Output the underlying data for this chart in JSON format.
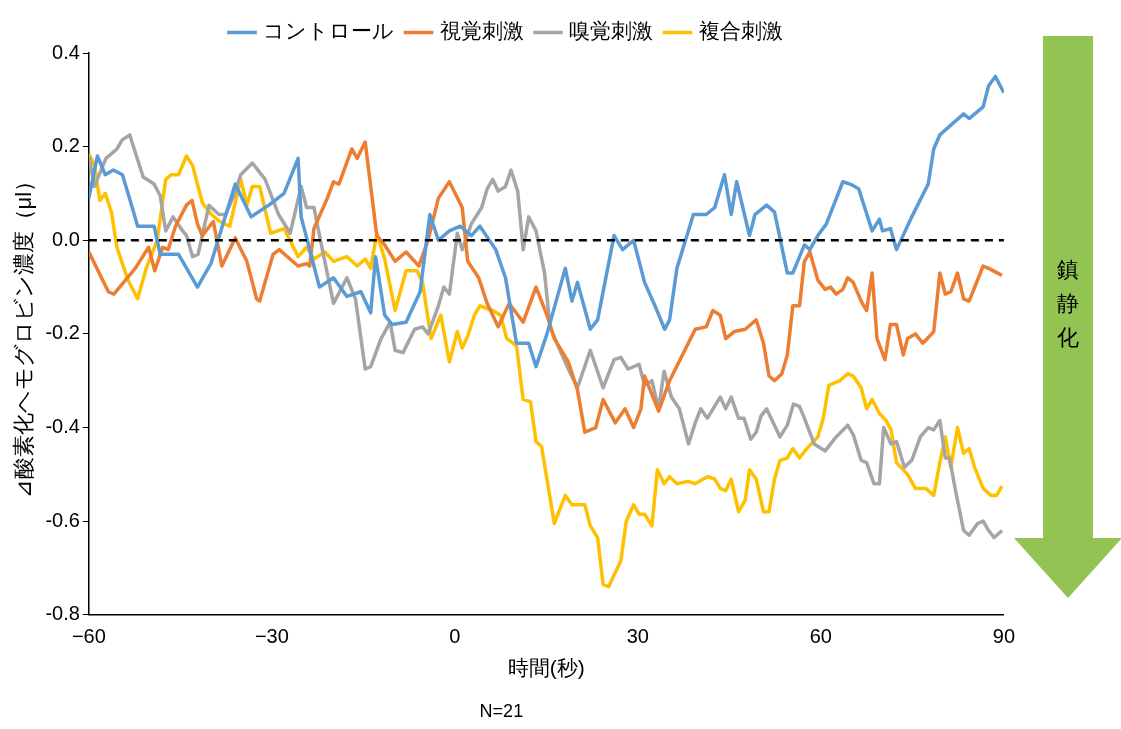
{
  "chart_data": {
    "type": "line",
    "xlabel": "時間(秒)",
    "ylabel": "⊿酸素化ヘモグロビン濃度（μl）",
    "annotations": [
      "N=21",
      "鎮静化"
    ],
    "xlim": [
      -60,
      90
    ],
    "xticks": [
      {
        "value": -60,
        "label": "−60"
      },
      {
        "value": -30,
        "label": "−30"
      },
      0,
      30,
      60,
      90
    ],
    "ylim": [
      -0.8,
      0.4
    ],
    "yticks": [
      -0.8,
      -0.6,
      -0.4,
      -0.2,
      {
        "value": 0,
        "label": "0.0"
      },
      0.2,
      0.4
    ],
    "grid": false,
    "legend": "top",
    "ref_lines": [
      {
        "axis": "y",
        "value": 0,
        "color": "#000000",
        "line_style": "dashed"
      }
    ],
    "series": [
      {
        "name": "コントロール",
        "color": "#5b9bd5",
        "x": [
          -60,
          -58.6,
          -57.3,
          -56,
          -54.5,
          -53,
          -52,
          -49.3,
          -48.3,
          -45.3,
          -42.2,
          -40,
          -36,
          -33.4,
          -30.5,
          -28,
          -25.7,
          -25.2,
          -22.2,
          -19.9,
          -17.7,
          -15.4,
          -13.8,
          -13,
          -11.5,
          -10.3,
          -8,
          -5.7,
          -4.1,
          -2.7,
          -0.9,
          0.9,
          2.7,
          4.1,
          6.7,
          8.3,
          10.1,
          12.1,
          13.3,
          15.1,
          18.1,
          19.2,
          20.1,
          22.2,
          23.4,
          26.1,
          27.5,
          29.3,
          31.1,
          32.8,
          34.4,
          35.2,
          36.4,
          39.1,
          41.2,
          42.6,
          44.2,
          45.3,
          46.2,
          48.3,
          49.2,
          51.1,
          52.4,
          54.5,
          55.4,
          57.3,
          58.2,
          59.5,
          60.9,
          63.6,
          64.8,
          66.2,
          68.4,
          69.6,
          70.1,
          71.4,
          72.4,
          74.9,
          77.6,
          78.5,
          79.5,
          83.4,
          84.3,
          86.6,
          87.5,
          88.6,
          90
        ],
        "values": [
          0.09,
          0.18,
          0.14,
          0.15,
          0.14,
          0.075,
          0.03,
          0.03,
          -0.03,
          -0.03,
          -0.1,
          -0.05,
          0.12,
          0.05,
          0.075,
          0.1,
          0.175,
          0.05,
          -0.1,
          -0.08,
          -0.12,
          -0.11,
          -0.155,
          -0.035,
          -0.16,
          -0.18,
          -0.175,
          -0.11,
          0.055,
          0,
          0.02,
          0.03,
          0.01,
          0.03,
          -0.02,
          -0.08,
          -0.22,
          -0.22,
          -0.27,
          -0.2,
          -0.06,
          -0.13,
          -0.09,
          -0.19,
          -0.17,
          0.01,
          -0.02,
          0,
          -0.09,
          -0.14,
          -0.19,
          -0.17,
          -0.06,
          0.055,
          0.055,
          0.07,
          0.14,
          0.055,
          0.125,
          0.01,
          0.055,
          0.075,
          0.06,
          -0.07,
          -0.07,
          -0.01,
          -0.02,
          0.01,
          0.035,
          0.125,
          0.12,
          0.11,
          0.02,
          0.045,
          0.02,
          0.025,
          -0.02,
          0.05,
          0.12,
          0.195,
          0.225,
          0.27,
          0.26,
          0.285,
          0.33,
          0.35,
          0.315
        ]
      },
      {
        "name": "視覚刺激",
        "color": "#ed7d31",
        "x": [
          -60,
          -56.8,
          -55.9,
          -52.4,
          -50.2,
          -49.2,
          -47.9,
          -47,
          -45.8,
          -44,
          -43.1,
          -42.2,
          -41.4,
          -39.6,
          -38.2,
          -36,
          -34.1,
          -32.5,
          -32,
          -29.8,
          -28.8,
          -25.7,
          -24.3,
          -23.8,
          -23.1,
          -20.9,
          -19.9,
          -19,
          -16.9,
          -16,
          -14.7,
          -12.8,
          -11.5,
          -9.8,
          -8,
          -5.9,
          -4.4,
          -2.7,
          -0.9,
          1.2,
          2.1,
          3.9,
          5.3,
          7.1,
          8.9,
          11.2,
          13.3,
          15.1,
          16.3,
          18.6,
          20.1,
          21.3,
          23.1,
          24.3,
          26.3,
          27.9,
          29.3,
          30.5,
          31.1,
          33.4,
          35.2,
          37.3,
          39.4,
          41.2,
          42.3,
          43.5,
          44.4,
          45.8,
          47.6,
          49.4,
          50.6,
          51.5,
          52.4,
          53.6,
          54.5,
          55.4,
          56.5,
          57.3,
          58.2,
          59.5,
          60.7,
          61.6,
          62.5,
          63.6,
          64.4,
          65.3,
          66.6,
          67.5,
          68.4,
          69.2,
          70.5,
          71.4,
          72.4,
          73.5,
          74.2,
          75.5,
          76.7,
          77.8,
          78.5,
          79.5,
          80.4,
          81.3,
          82.4,
          83.4,
          84.3,
          86.6,
          87.5,
          89.7
        ],
        "values": [
          -0.025,
          -0.11,
          -0.115,
          -0.06,
          -0.015,
          -0.065,
          -0.015,
          -0.02,
          0.03,
          0.075,
          0.085,
          0.035,
          0.01,
          0.04,
          -0.055,
          0.005,
          -0.045,
          -0.125,
          -0.13,
          -0.03,
          -0.02,
          -0.055,
          -0.05,
          -0.055,
          0.025,
          0.09,
          0.125,
          0.12,
          0.195,
          0.175,
          0.21,
          0.01,
          -0.01,
          -0.045,
          -0.025,
          -0.055,
          0,
          0.09,
          0.125,
          0.07,
          -0.045,
          -0.08,
          -0.135,
          -0.185,
          -0.135,
          -0.175,
          -0.1,
          -0.16,
          -0.21,
          -0.26,
          -0.32,
          -0.41,
          -0.4,
          -0.34,
          -0.39,
          -0.36,
          -0.4,
          -0.36,
          -0.29,
          -0.365,
          -0.3,
          -0.245,
          -0.19,
          -0.185,
          -0.15,
          -0.16,
          -0.21,
          -0.195,
          -0.19,
          -0.17,
          -0.22,
          -0.29,
          -0.3,
          -0.285,
          -0.245,
          -0.14,
          -0.14,
          -0.045,
          -0.025,
          -0.085,
          -0.105,
          -0.1,
          -0.115,
          -0.105,
          -0.08,
          -0.09,
          -0.13,
          -0.15,
          -0.07,
          -0.21,
          -0.255,
          -0.18,
          -0.18,
          -0.245,
          -0.21,
          -0.2,
          -0.22,
          -0.205,
          -0.195,
          -0.07,
          -0.115,
          -0.11,
          -0.07,
          -0.125,
          -0.13,
          -0.055,
          -0.06,
          -0.075
        ]
      },
      {
        "name": "嗅覚刺激",
        "color": "#a5a5a5",
        "x": [
          -60,
          -59.1,
          -57.2,
          -55.4,
          -54.5,
          -53.3,
          -51.1,
          -49.3,
          -48.3,
          -47.4,
          -46.2,
          -44.9,
          -44,
          -43,
          -42.1,
          -40.3,
          -38.7,
          -37.6,
          -36.4,
          -35.1,
          -33.2,
          -31.1,
          -28.9,
          -27,
          -25.2,
          -24.3,
          -23.1,
          -21.8,
          -19.9,
          -17.7,
          -16.3,
          -14.7,
          -13.8,
          -12.1,
          -10.6,
          -9.8,
          -8.5,
          -6.6,
          -5.3,
          -4.4,
          -2.7,
          -1.8,
          -0.9,
          0.4,
          1.2,
          2.7,
          4.4,
          5.3,
          6.2,
          7.1,
          8.3,
          9.2,
          10.3,
          11.2,
          12.1,
          13.3,
          14.7,
          15.6,
          17.4,
          18.6,
          20.1,
          22.2,
          24.3,
          26.1,
          27.2,
          28.4,
          30.2,
          31.1,
          32.3,
          33.4,
          34.3,
          35.5,
          36.8,
          38.3,
          39.4,
          40.3,
          41.4,
          43.5,
          44.4,
          45.3,
          46.5,
          47.4,
          48.5,
          49.4,
          50.2,
          51.1,
          53.3,
          54.5,
          55.5,
          56.5,
          57.3,
          58.9,
          60.7,
          62.5,
          64.4,
          65.3,
          66.6,
          67.5,
          68.7,
          69.6,
          70.3,
          71.5,
          72.4,
          73.7,
          74.9,
          76.3,
          77.6,
          78.5,
          79.5,
          80.4,
          81.1,
          82,
          83.4,
          84.3,
          85.7,
          86.6,
          87.5,
          88.4,
          89.7
        ],
        "values": [
          0.18,
          0.115,
          0.175,
          0.195,
          0.215,
          0.225,
          0.135,
          0.12,
          0.095,
          0.02,
          0.05,
          0.025,
          0.01,
          -0.035,
          -0.03,
          0.075,
          0.055,
          0.055,
          0.09,
          0.14,
          0.165,
          0.13,
          0.055,
          0.015,
          0.115,
          0.07,
          0.07,
          -0.015,
          -0.135,
          -0.08,
          -0.125,
          -0.275,
          -0.27,
          -0.21,
          -0.175,
          -0.235,
          -0.24,
          -0.19,
          -0.185,
          -0.2,
          -0.14,
          -0.1,
          -0.115,
          0.015,
          -0.02,
          0.035,
          0.07,
          0.11,
          0.13,
          0.105,
          0.115,
          0.15,
          0.105,
          -0.02,
          0.05,
          0.02,
          -0.07,
          -0.185,
          -0.24,
          -0.275,
          -0.315,
          -0.235,
          -0.315,
          -0.255,
          -0.25,
          -0.275,
          -0.265,
          -0.31,
          -0.3,
          -0.36,
          -0.28,
          -0.335,
          -0.36,
          -0.435,
          -0.39,
          -0.36,
          -0.38,
          -0.335,
          -0.36,
          -0.335,
          -0.38,
          -0.38,
          -0.425,
          -0.41,
          -0.375,
          -0.36,
          -0.42,
          -0.395,
          -0.35,
          -0.355,
          -0.38,
          -0.435,
          -0.45,
          -0.42,
          -0.395,
          -0.415,
          -0.47,
          -0.475,
          -0.52,
          -0.52,
          -0.4,
          -0.435,
          -0.43,
          -0.485,
          -0.47,
          -0.42,
          -0.4,
          -0.405,
          -0.385,
          -0.465,
          -0.465,
          -0.53,
          -0.62,
          -0.63,
          -0.605,
          -0.6,
          -0.62,
          -0.635,
          -0.62
        ]
      },
      {
        "name": "複合刺激",
        "color": "#ffc000",
        "x": [
          -60,
          -59.1,
          -58.2,
          -57.3,
          -56.3,
          -55.4,
          -53.6,
          -52,
          -50.6,
          -48.8,
          -47.4,
          -46.5,
          -45.3,
          -44,
          -43,
          -41.4,
          -39.9,
          -38.5,
          -36.9,
          -35.1,
          -34.1,
          -33.2,
          -32,
          -30.2,
          -28,
          -25.7,
          -24.3,
          -23.1,
          -21.3,
          -19.9,
          -17.7,
          -16,
          -14.7,
          -13.8,
          -12.8,
          -11.5,
          -9.8,
          -8,
          -6.2,
          -5.3,
          -3.9,
          -2.3,
          -0.9,
          0.4,
          1.2,
          2.1,
          3.2,
          4.1,
          6.2,
          7.5,
          8.5,
          10.1,
          11.2,
          12.4,
          13.3,
          14.2,
          16.3,
          18.1,
          19.2,
          21.3,
          22.2,
          23.4,
          24.3,
          25.2,
          27.2,
          28.1,
          29.3,
          30.2,
          31.1,
          32.3,
          33.2,
          34.3,
          35.2,
          36.4,
          38.2,
          39.4,
          41.4,
          42.6,
          43.5,
          44.4,
          45.3,
          46.5,
          47.6,
          48.3,
          49.4,
          50.6,
          51.5,
          52.4,
          53.3,
          54.5,
          55.4,
          56.5,
          57.7,
          59.5,
          60.4,
          61.3,
          63.1,
          64.4,
          65.3,
          66.6,
          67.5,
          68.4,
          69.6,
          70.7,
          71.5,
          72.4,
          74.2,
          75.5,
          77.2,
          78.5,
          79.5,
          80.4,
          81.3,
          82.4,
          83.4,
          84.3,
          85.2,
          86.6,
          87.9,
          88.8,
          89.7
        ],
        "values": [
          0.185,
          0.16,
          0.085,
          0.1,
          0.06,
          -0.015,
          -0.085,
          -0.125,
          -0.06,
          0,
          0.13,
          0.14,
          0.14,
          0.18,
          0.16,
          0.08,
          0.055,
          0.04,
          0.03,
          0.13,
          0.075,
          0.115,
          0.115,
          0.015,
          0.025,
          -0.035,
          -0.015,
          -0.04,
          -0.025,
          -0.045,
          -0.035,
          -0.055,
          -0.04,
          -0.06,
          0.015,
          -0.04,
          -0.15,
          -0.065,
          -0.065,
          -0.09,
          -0.21,
          -0.16,
          -0.26,
          -0.195,
          -0.23,
          -0.205,
          -0.16,
          -0.14,
          -0.15,
          -0.16,
          -0.21,
          -0.225,
          -0.34,
          -0.345,
          -0.43,
          -0.44,
          -0.605,
          -0.545,
          -0.565,
          -0.565,
          -0.61,
          -0.635,
          -0.735,
          -0.74,
          -0.685,
          -0.6,
          -0.565,
          -0.585,
          -0.585,
          -0.61,
          -0.49,
          -0.52,
          -0.505,
          -0.52,
          -0.515,
          -0.52,
          -0.505,
          -0.51,
          -0.53,
          -0.535,
          -0.51,
          -0.58,
          -0.555,
          -0.49,
          -0.51,
          -0.58,
          -0.58,
          -0.51,
          -0.47,
          -0.465,
          -0.445,
          -0.465,
          -0.445,
          -0.42,
          -0.38,
          -0.31,
          -0.3,
          -0.285,
          -0.29,
          -0.315,
          -0.36,
          -0.34,
          -0.37,
          -0.385,
          -0.405,
          -0.475,
          -0.5,
          -0.53,
          -0.53,
          -0.545,
          -0.475,
          -0.42,
          -0.485,
          -0.4,
          -0.455,
          -0.445,
          -0.485,
          -0.53,
          -0.545,
          -0.545,
          -0.525
        ]
      }
    ]
  }
}
